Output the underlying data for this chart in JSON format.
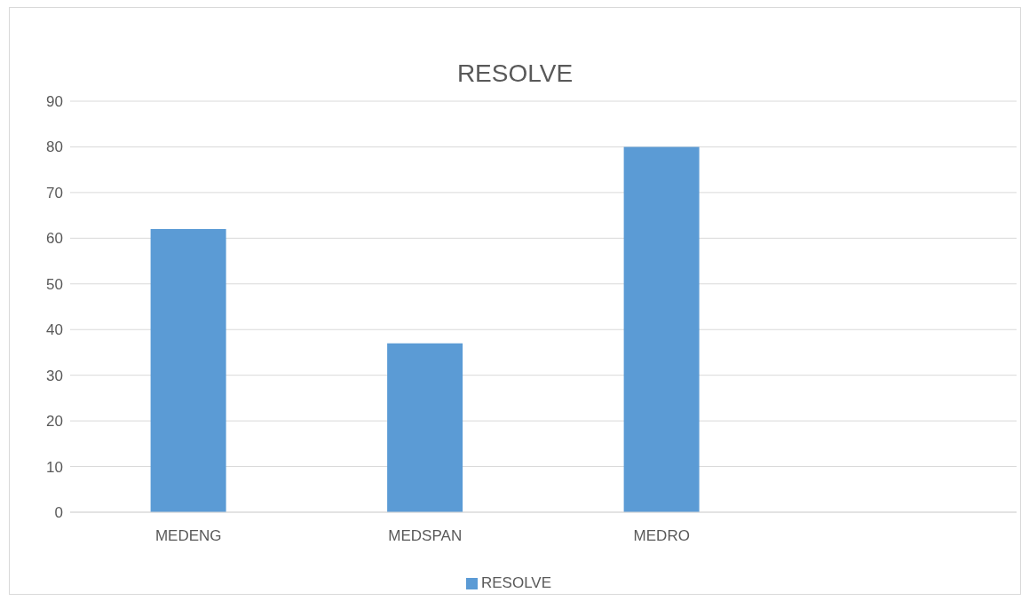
{
  "chart_data": {
    "type": "bar",
    "title": "RESOLVE",
    "categories": [
      "MEDENG",
      "MEDSPAN",
      "MEDRO",
      null
    ],
    "series": [
      {
        "name": "RESOLVE",
        "color": "#5b9bd5",
        "values": [
          62,
          37,
          80,
          null
        ]
      }
    ],
    "ylim": [
      0,
      90
    ],
    "yticks": [
      0,
      10,
      20,
      30,
      40,
      50,
      60,
      70,
      80,
      90
    ],
    "grid": "y",
    "legend": "bottom"
  }
}
